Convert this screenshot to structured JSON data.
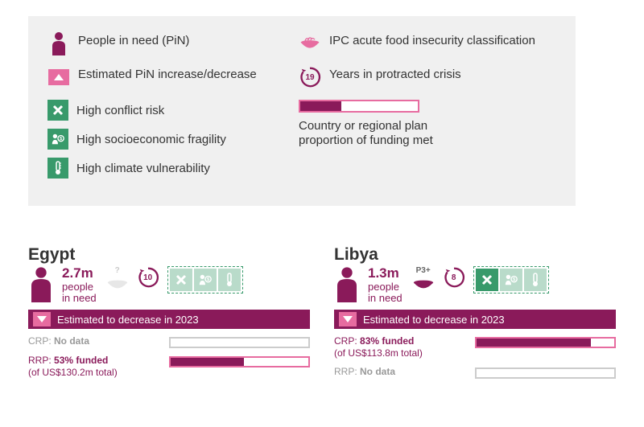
{
  "colors": {
    "maroon": "#8a1a5a",
    "pink": "#e76ca0",
    "green": "#389a6b",
    "lightgray": "#f0f0f0",
    "textgray": "#999999"
  },
  "legend": {
    "pin": "People in need (PiN)",
    "est": "Estimated PiN increase/decrease",
    "ipc": "IPC acute food insecurity classification",
    "years_num": "19",
    "years": "Years in protracted crisis",
    "conflict": "High conflict risk",
    "socio": "High socioeconomic fragility",
    "climate": "High climate vulnerability",
    "funding_caption": "Country or regional plan proportion of funding met",
    "demo_fill_pct": 35
  },
  "countries": [
    {
      "key": "egypt",
      "name": "Egypt",
      "pin_value": "2.7m",
      "pin_label": "people in need",
      "ipc_label": "?",
      "ipc_faded": true,
      "years": "10",
      "risks": {
        "conflict": false,
        "socio": false,
        "climate": false
      },
      "estimate_direction": "down",
      "estimate_text": "Estimated to decrease in 2023",
      "crp": {
        "label": "CRP:",
        "value": "No data",
        "subtext": "",
        "funded_pct": 0,
        "has_data": false
      },
      "rrp": {
        "label": "RRP:",
        "value": "53% funded",
        "subtext": "(of US$130.2m total)",
        "funded_pct": 53,
        "has_data": true
      }
    },
    {
      "key": "libya",
      "name": "Libya",
      "pin_value": "1.3m",
      "pin_label": "people in need",
      "ipc_label": "P3+",
      "ipc_faded": false,
      "years": "8",
      "risks": {
        "conflict": true,
        "socio": false,
        "climate": false
      },
      "estimate_direction": "down",
      "estimate_text": "Estimated to decrease in 2023",
      "crp": {
        "label": "CRP:",
        "value": "83% funded",
        "subtext": "(of US$113.8m total)",
        "funded_pct": 83,
        "has_data": true
      },
      "rrp": {
        "label": "RRP:",
        "value": "No data",
        "subtext": "",
        "funded_pct": 0,
        "has_data": false
      }
    }
  ]
}
